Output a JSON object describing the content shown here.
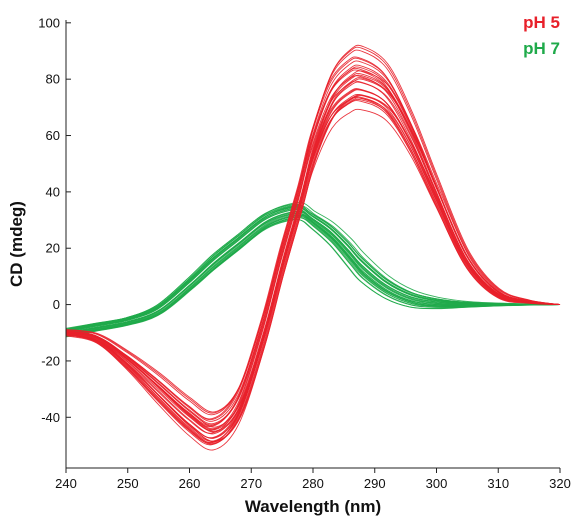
{
  "chart_data": {
    "type": "line",
    "xlabel": "Wavelength (nm)",
    "ylabel": "CD (mdeg)",
    "xlim": [
      240,
      320
    ],
    "ylim": [
      -58,
      101
    ],
    "x_ticks": [
      240,
      250,
      260,
      270,
      280,
      290,
      300,
      310,
      320
    ],
    "y_ticks": [
      -40,
      -20,
      0,
      20,
      40,
      60,
      80,
      100
    ],
    "x_tick_labels": [
      "240",
      "250",
      "260",
      "270",
      "280",
      "290",
      "300",
      "310",
      "320"
    ],
    "y_tick_labels": [
      "-40",
      "-20",
      "0",
      "20",
      "40",
      "60",
      "80",
      "100"
    ],
    "grid": false,
    "legend_position": "top-right",
    "x": [
      240,
      245,
      250,
      255,
      260,
      264,
      268,
      272,
      275,
      278,
      280,
      283,
      286,
      288,
      292,
      296,
      300,
      305,
      310,
      315,
      320
    ],
    "series": [
      {
        "name": "pH 5",
        "color": "#e8202a",
        "values": [
          -10,
          -12,
          -20,
          -30,
          -40,
          -45,
          -36,
          -10,
          15,
          38,
          55,
          72,
          79,
          80,
          75,
          60,
          40,
          16,
          4,
          1,
          0
        ],
        "spread": [
          1,
          1.5,
          3,
          5,
          6,
          6,
          6,
          6,
          6,
          6,
          7,
          9,
          10,
          10,
          9,
          7,
          5,
          3,
          1.5,
          0.5,
          0
        ],
        "count": 30
      },
      {
        "name": "pH 7",
        "color": "#1faa4a",
        "values": [
          -10,
          -8,
          -6,
          -2,
          7,
          15,
          22,
          29,
          32,
          33,
          30,
          25,
          18,
          13,
          6,
          2,
          0.5,
          0,
          0,
          0,
          0
        ],
        "spread": [
          1.5,
          1.5,
          1.5,
          2,
          2.5,
          3,
          3,
          3,
          3,
          3,
          3,
          4,
          5,
          5,
          4,
          3,
          2,
          1,
          0.5,
          0.2,
          0
        ],
        "count": 28
      }
    ]
  }
}
